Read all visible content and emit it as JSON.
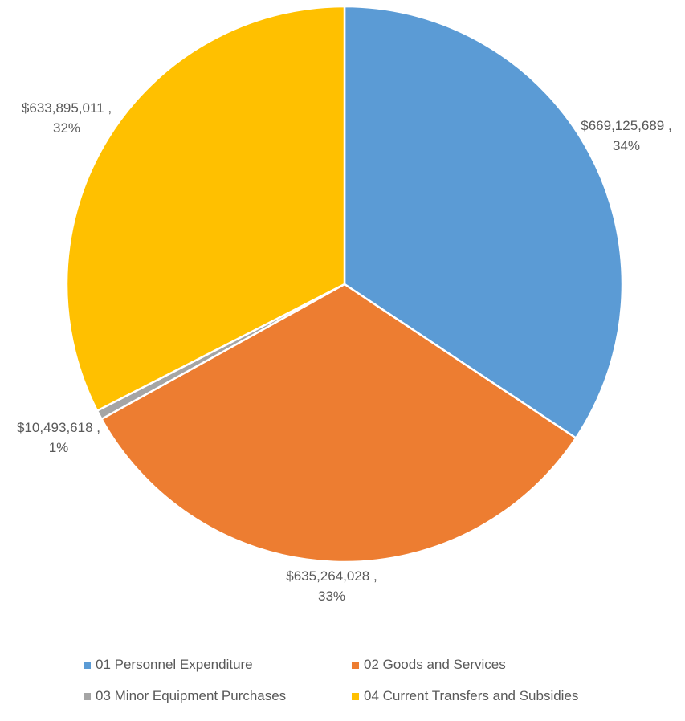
{
  "chart_data": {
    "type": "pie",
    "title": "",
    "slices": [
      {
        "name": "01 Personnel Expenditure",
        "value": 669125689,
        "value_label": "$669,125,689 ,",
        "percent_label": "34%",
        "color": "#5B9BD5"
      },
      {
        "name": "02 Goods and Services",
        "value": 635264028,
        "value_label": "$635,264,028 ,",
        "percent_label": "33%",
        "color": "#ED7D31"
      },
      {
        "name": "03 Minor Equipment Purchases",
        "value": 10493618,
        "value_label": "$10,493,618 ,",
        "percent_label": "1%",
        "color": "#A5A5A5"
      },
      {
        "name": "04 Current Transfers and Subsidies",
        "value": 633895011,
        "value_label": "$633,895,011 ,",
        "percent_label": "32%",
        "color": "#FFC000"
      }
    ],
    "legend_position": "bottom"
  }
}
